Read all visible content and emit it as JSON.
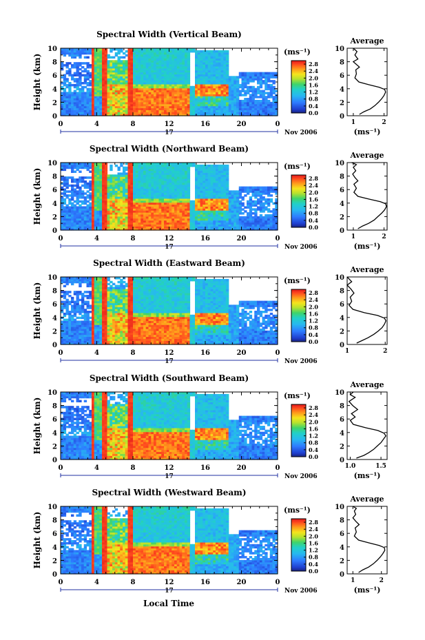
{
  "chart_data": [
    {
      "type": "heatmap",
      "title": "Spectral Width (Vertical Beam)",
      "average_title": "Average",
      "ylabel": "Height (km)",
      "yticks": [
        "0",
        "2",
        "4",
        "6",
        "8",
        "10"
      ],
      "ylim": [
        0,
        10
      ],
      "xticks": [
        "0",
        "4",
        "8",
        "12",
        "16",
        "20",
        "0"
      ],
      "xlim": [
        0,
        24
      ],
      "day_label": "17",
      "date_label": "Nov 2006",
      "colorbar": {
        "unit": "(ms⁻¹)",
        "ticks": [
          "0.0",
          "0.4",
          "0.8",
          "1.2",
          "1.6",
          "2.0",
          "2.4",
          "2.8"
        ],
        "range": [
          0,
          3.0
        ]
      },
      "average": {
        "xlabel": "(ms⁻¹)",
        "xticks": [
          "1",
          "2"
        ],
        "xlim": [
          0.8,
          2.1
        ],
        "ylim": [
          0,
          10
        ],
        "profile": [
          [
            1.2,
            0.2
          ],
          [
            1.35,
            0.6
          ],
          [
            1.55,
            1.0
          ],
          [
            1.7,
            1.5
          ],
          [
            1.82,
            2.0
          ],
          [
            1.92,
            2.5
          ],
          [
            2.0,
            3.0
          ],
          [
            2.05,
            3.5
          ],
          [
            2.02,
            3.9
          ],
          [
            1.85,
            4.2
          ],
          [
            1.5,
            4.6
          ],
          [
            1.18,
            5.0
          ],
          [
            1.05,
            5.6
          ],
          [
            1.1,
            6.2
          ],
          [
            1.08,
            6.8
          ],
          [
            1.2,
            7.2
          ],
          [
            1.1,
            7.6
          ],
          [
            1.0,
            8.0
          ],
          [
            1.15,
            8.4
          ],
          [
            1.05,
            9.0
          ],
          [
            1.12,
            9.5
          ],
          [
            1.0,
            10.0
          ]
        ]
      }
    },
    {
      "type": "heatmap",
      "title": "Spectral Width (Northward Beam)",
      "average_title": "Average",
      "ylabel": "Height (km)",
      "yticks": [
        "0",
        "2",
        "4",
        "6",
        "8",
        "10"
      ],
      "ylim": [
        0,
        10
      ],
      "xticks": [
        "0",
        "4",
        "8",
        "12",
        "16",
        "20",
        "0"
      ],
      "xlim": [
        0,
        24
      ],
      "day_label": "17",
      "date_label": "Nov 2006",
      "colorbar": {
        "unit": "(ms⁻¹)",
        "ticks": [
          "0.0",
          "0.4",
          "0.8",
          "1.2",
          "1.6",
          "2.0",
          "2.4",
          "2.8"
        ],
        "range": [
          0,
          3.0
        ]
      },
      "average": {
        "xlabel": "(ms⁻¹)",
        "xticks": [
          "1",
          "2"
        ],
        "xlim": [
          0.8,
          2.1
        ],
        "ylim": [
          0,
          10
        ],
        "profile": [
          [
            1.15,
            0.2
          ],
          [
            1.3,
            0.6
          ],
          [
            1.5,
            1.0
          ],
          [
            1.68,
            1.5
          ],
          [
            1.8,
            2.0
          ],
          [
            1.92,
            2.5
          ],
          [
            2.02,
            3.0
          ],
          [
            2.08,
            3.5
          ],
          [
            2.05,
            3.9
          ],
          [
            1.88,
            4.2
          ],
          [
            1.5,
            4.6
          ],
          [
            1.15,
            5.0
          ],
          [
            1.02,
            5.6
          ],
          [
            1.1,
            6.2
          ],
          [
            1.02,
            6.8
          ],
          [
            1.15,
            7.3
          ],
          [
            1.05,
            7.8
          ],
          [
            0.98,
            8.3
          ],
          [
            1.08,
            8.8
          ],
          [
            1.0,
            9.3
          ],
          [
            1.1,
            9.7
          ],
          [
            0.95,
            10.0
          ]
        ]
      }
    },
    {
      "type": "heatmap",
      "title": "Spectral Width (Eastward Beam)",
      "average_title": "Average",
      "ylabel": "Height (km)",
      "yticks": [
        "0",
        "2",
        "4",
        "6",
        "8",
        "10"
      ],
      "ylim": [
        0,
        10
      ],
      "xticks": [
        "0",
        "4",
        "8",
        "12",
        "16",
        "20",
        "0"
      ],
      "xlim": [
        0,
        24
      ],
      "day_label": "17",
      "date_label": "Nov 2006",
      "colorbar": {
        "unit": "(ms⁻¹)",
        "ticks": [
          "0.0",
          "0.4",
          "0.8",
          "1.2",
          "1.6",
          "2.0",
          "2.4",
          "2.8"
        ],
        "range": [
          0,
          3.0
        ]
      },
      "average": {
        "xlabel": "",
        "xticks": [
          "1",
          "2"
        ],
        "xlim": [
          1.0,
          2.05
        ],
        "ylim": [
          0,
          10
        ],
        "profile": [
          [
            1.25,
            0.2
          ],
          [
            1.4,
            0.6
          ],
          [
            1.55,
            1.0
          ],
          [
            1.7,
            1.5
          ],
          [
            1.82,
            2.0
          ],
          [
            1.92,
            2.5
          ],
          [
            1.98,
            3.0
          ],
          [
            2.02,
            3.5
          ],
          [
            1.98,
            3.9
          ],
          [
            1.8,
            4.3
          ],
          [
            1.45,
            4.7
          ],
          [
            1.15,
            5.2
          ],
          [
            1.05,
            5.8
          ],
          [
            1.12,
            6.4
          ],
          [
            1.08,
            7.0
          ],
          [
            1.18,
            7.6
          ],
          [
            1.1,
            8.2
          ],
          [
            1.0,
            8.8
          ],
          [
            1.12,
            9.3
          ],
          [
            1.05,
            9.7
          ],
          [
            1.0,
            10.0
          ]
        ]
      }
    },
    {
      "type": "heatmap",
      "title": "Spectral Width (Southward Beam)",
      "average_title": "Average",
      "ylabel": "Height (km)",
      "yticks": [
        "0",
        "2",
        "4",
        "6",
        "8",
        "10"
      ],
      "ylim": [
        0,
        10
      ],
      "xticks": [
        "0",
        "4",
        "8",
        "12",
        "16",
        "20",
        "0"
      ],
      "xlim": [
        0,
        24
      ],
      "day_label": "17",
      "date_label": "Nov 2006",
      "colorbar": {
        "unit": "(ms⁻¹)",
        "ticks": [
          "0.0",
          "0.4",
          "0.8",
          "1.2",
          "1.6",
          "2.0",
          "2.4",
          "2.8"
        ],
        "range": [
          0,
          3.0
        ]
      },
      "average": {
        "xlabel": "(ms⁻¹)",
        "xticks": [
          "1.0",
          "1.5"
        ],
        "xlim": [
          0.95,
          1.6
        ],
        "ylim": [
          0,
          10
        ],
        "profile": [
          [
            1.1,
            0.2
          ],
          [
            1.22,
            0.6
          ],
          [
            1.3,
            1.0
          ],
          [
            1.38,
            1.5
          ],
          [
            1.44,
            2.0
          ],
          [
            1.5,
            2.5
          ],
          [
            1.54,
            3.0
          ],
          [
            1.58,
            3.5
          ],
          [
            1.55,
            3.9
          ],
          [
            1.45,
            4.3
          ],
          [
            1.25,
            4.7
          ],
          [
            1.05,
            5.2
          ],
          [
            1.0,
            5.8
          ],
          [
            1.08,
            6.3
          ],
          [
            1.02,
            6.8
          ],
          [
            1.12,
            7.4
          ],
          [
            1.04,
            8.0
          ],
          [
            0.98,
            8.6
          ],
          [
            1.08,
            9.2
          ],
          [
            1.0,
            9.6
          ],
          [
            1.05,
            10.0
          ]
        ]
      }
    },
    {
      "type": "heatmap",
      "title": "Spectral Width (Westward Beam)",
      "average_title": "Average",
      "ylabel": "Height (km)",
      "yticks": [
        "0",
        "2",
        "4",
        "6",
        "8",
        "10"
      ],
      "ylim": [
        0,
        10
      ],
      "xticks": [
        "0",
        "4",
        "8",
        "12",
        "16",
        "20",
        "0"
      ],
      "xlim": [
        0,
        24
      ],
      "day_label": "17",
      "date_label": "Nov 2006",
      "colorbar": {
        "unit": "(ms⁻¹)",
        "ticks": [
          "0.0",
          "0.4",
          "0.8",
          "1.2",
          "1.6",
          "2.0",
          "2.4",
          "2.8"
        ],
        "range": [
          0,
          3.0
        ]
      },
      "average": {
        "xlabel": "(ms⁻¹)",
        "xticks": [
          "1",
          "2"
        ],
        "xlim": [
          0.8,
          2.2
        ],
        "ylim": [
          0,
          10
        ],
        "profile": [
          [
            1.2,
            0.2
          ],
          [
            1.35,
            0.6
          ],
          [
            1.55,
            1.0
          ],
          [
            1.72,
            1.5
          ],
          [
            1.85,
            2.0
          ],
          [
            1.96,
            2.5
          ],
          [
            2.05,
            3.0
          ],
          [
            2.12,
            3.5
          ],
          [
            2.1,
            3.9
          ],
          [
            1.92,
            4.2
          ],
          [
            1.55,
            4.6
          ],
          [
            1.2,
            5.0
          ],
          [
            1.05,
            5.6
          ],
          [
            1.12,
            6.2
          ],
          [
            1.08,
            6.8
          ],
          [
            1.22,
            7.3
          ],
          [
            1.1,
            7.8
          ],
          [
            1.0,
            8.3
          ],
          [
            1.1,
            8.8
          ],
          [
            1.05,
            9.3
          ],
          [
            1.12,
            9.7
          ],
          [
            1.0,
            10.0
          ]
        ]
      }
    }
  ],
  "xlabel_bottom": "Local Time"
}
